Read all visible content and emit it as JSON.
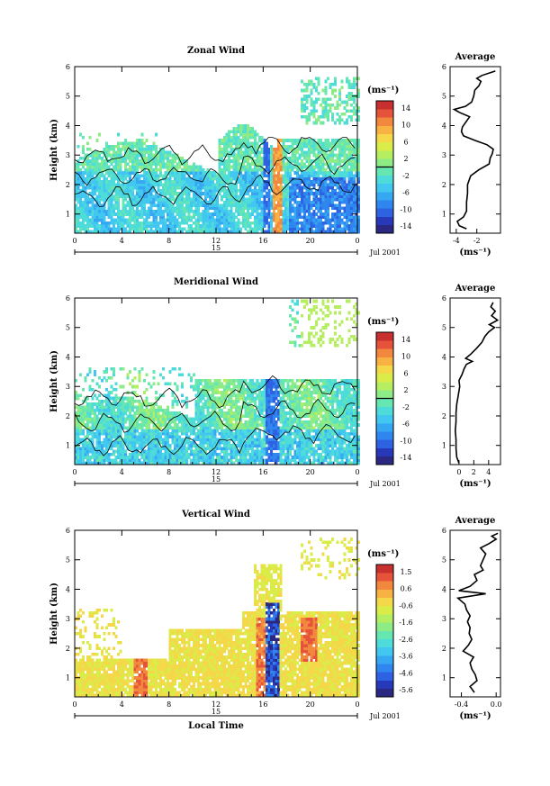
{
  "figure": {
    "x_label": "Local Time",
    "date_label": "Jul 2001",
    "y_label": "Height (km)",
    "unit_label": "(ms⁻¹)",
    "avg_unit_label": "(ms⁻¹)"
  },
  "chart_data": [
    {
      "type": "heatmap",
      "title": "Zonal Wind",
      "xlabel": "",
      "ylabel": "Height (km)",
      "x_ticks": [
        "0",
        "4",
        "8",
        "12",
        "16",
        "20",
        "0"
      ],
      "x_range_hours": [
        0,
        24
      ],
      "day_label": "15",
      "date_label": "Jul 2001",
      "y_ticks": [
        "1",
        "2",
        "3",
        "4",
        "5",
        "6"
      ],
      "ylim": [
        0.35,
        6.0
      ],
      "colorbar": {
        "unit": "(ms⁻¹)",
        "ticks": [
          "14",
          "10",
          "6",
          "2",
          "-2",
          "-6",
          "-10",
          "-14"
        ],
        "range": [
          -16,
          16
        ]
      },
      "average_profile": {
        "title": "Average",
        "xlabel": "(ms⁻¹)",
        "x_ticks": [
          "-4",
          "-2"
        ],
        "xlim": [
          -4.6,
          0.3
        ],
        "points": [
          [
            0.5,
            -3.0
          ],
          [
            0.6,
            -3.7
          ],
          [
            0.75,
            -3.9
          ],
          [
            0.9,
            -3.3
          ],
          [
            1.1,
            -3.0
          ],
          [
            1.4,
            -3.0
          ],
          [
            1.7,
            -2.9
          ],
          [
            2.0,
            -2.9
          ],
          [
            2.3,
            -2.6
          ],
          [
            2.5,
            -1.8
          ],
          [
            2.7,
            -0.8
          ],
          [
            2.9,
            -0.7
          ],
          [
            3.05,
            -0.5
          ],
          [
            3.2,
            -0.4
          ],
          [
            3.35,
            -1.0
          ],
          [
            3.5,
            -2.2
          ],
          [
            3.65,
            -3.3
          ],
          [
            3.8,
            -3.5
          ],
          [
            3.95,
            -3.4
          ],
          [
            4.1,
            -3.1
          ],
          [
            4.3,
            -2.7
          ],
          [
            4.45,
            -3.7
          ],
          [
            4.55,
            -4.2
          ],
          [
            4.65,
            -3.1
          ],
          [
            4.8,
            -2.5
          ],
          [
            5.0,
            -2.3
          ],
          [
            5.2,
            -2.2
          ],
          [
            5.35,
            -1.8
          ],
          [
            5.5,
            -1.6
          ],
          [
            5.6,
            -2.0
          ],
          [
            5.7,
            -1.5
          ],
          [
            5.85,
            -0.2
          ]
        ]
      }
    },
    {
      "type": "heatmap",
      "title": "Meridional Wind",
      "xlabel": "",
      "ylabel": "Height (km)",
      "x_ticks": [
        "0",
        "4",
        "8",
        "12",
        "16",
        "20",
        "0"
      ],
      "x_range_hours": [
        0,
        24
      ],
      "day_label": "15",
      "date_label": "Jul 2001",
      "y_ticks": [
        "1",
        "2",
        "3",
        "4",
        "5",
        "6"
      ],
      "ylim": [
        0.35,
        6.0
      ],
      "colorbar": {
        "unit": "(ms⁻¹)",
        "ticks": [
          "14",
          "10",
          "6",
          "2",
          "-2",
          "-6",
          "-10",
          "-14"
        ],
        "range": [
          -16,
          16
        ]
      },
      "average_profile": {
        "title": "Average",
        "xlabel": "(ms⁻¹)",
        "x_ticks": [
          "0",
          "2",
          "4"
        ],
        "xlim": [
          -1.2,
          5.6
        ],
        "points": [
          [
            0.4,
            0.0
          ],
          [
            0.6,
            -0.3
          ],
          [
            0.9,
            -0.4
          ],
          [
            1.2,
            -0.4
          ],
          [
            1.5,
            -0.5
          ],
          [
            1.8,
            -0.4
          ],
          [
            2.1,
            -0.4
          ],
          [
            2.4,
            -0.3
          ],
          [
            2.7,
            -0.1
          ],
          [
            3.0,
            0.1
          ],
          [
            3.2,
            0.0
          ],
          [
            3.4,
            0.4
          ],
          [
            3.6,
            0.7
          ],
          [
            3.75,
            1.0
          ],
          [
            3.85,
            1.8
          ],
          [
            3.95,
            0.9
          ],
          [
            4.1,
            1.6
          ],
          [
            4.3,
            2.4
          ],
          [
            4.5,
            3.1
          ],
          [
            4.7,
            3.5
          ],
          [
            4.85,
            4.0
          ],
          [
            5.0,
            4.8
          ],
          [
            5.1,
            4.1
          ],
          [
            5.25,
            5.2
          ],
          [
            5.4,
            4.4
          ],
          [
            5.55,
            4.9
          ],
          [
            5.7,
            4.3
          ],
          [
            5.85,
            4.6
          ]
        ]
      }
    },
    {
      "type": "heatmap",
      "title": "Vertical Wind",
      "xlabel": "Local Time",
      "ylabel": "Height (km)",
      "x_ticks": [
        "0",
        "4",
        "8",
        "12",
        "16",
        "20",
        "0"
      ],
      "x_range_hours": [
        0,
        24
      ],
      "day_label": "15",
      "date_label": "Jul 2001",
      "y_ticks": [
        "1",
        "2",
        "3",
        "4",
        "5",
        "6"
      ],
      "ylim": [
        0.35,
        6.0
      ],
      "colorbar": {
        "unit": "(ms⁻¹)",
        "ticks": [
          "1.5",
          "0.6",
          "-0.6",
          "-1.6",
          "-2.6",
          "-3.6",
          "-4.6",
          "-5.6"
        ],
        "range": [
          -6.0,
          2.0
        ]
      },
      "average_profile": {
        "title": "Average",
        "xlabel": "(ms⁻¹)",
        "x_ticks": [
          "-0.4",
          "0.0"
        ],
        "xlim": [
          -0.53,
          0.05
        ],
        "points": [
          [
            0.5,
            -0.25
          ],
          [
            0.7,
            -0.3
          ],
          [
            0.9,
            -0.22
          ],
          [
            1.1,
            -0.24
          ],
          [
            1.3,
            -0.28
          ],
          [
            1.5,
            -0.3
          ],
          [
            1.7,
            -0.26
          ],
          [
            1.9,
            -0.38
          ],
          [
            2.1,
            -0.32
          ],
          [
            2.3,
            -0.28
          ],
          [
            2.5,
            -0.31
          ],
          [
            2.7,
            -0.3
          ],
          [
            2.9,
            -0.33
          ],
          [
            3.1,
            -0.3
          ],
          [
            3.3,
            -0.34
          ],
          [
            3.5,
            -0.36
          ],
          [
            3.7,
            -0.44
          ],
          [
            3.85,
            -0.12
          ],
          [
            3.95,
            -0.43
          ],
          [
            4.1,
            -0.3
          ],
          [
            4.3,
            -0.22
          ],
          [
            4.5,
            -0.25
          ],
          [
            4.65,
            -0.15
          ],
          [
            4.8,
            -0.18
          ],
          [
            5.0,
            -0.15
          ],
          [
            5.2,
            -0.12
          ],
          [
            5.4,
            -0.18
          ],
          [
            5.55,
            -0.08
          ],
          [
            5.7,
            0.0
          ],
          [
            5.8,
            -0.05
          ],
          [
            5.9,
            0.02
          ]
        ]
      }
    }
  ]
}
